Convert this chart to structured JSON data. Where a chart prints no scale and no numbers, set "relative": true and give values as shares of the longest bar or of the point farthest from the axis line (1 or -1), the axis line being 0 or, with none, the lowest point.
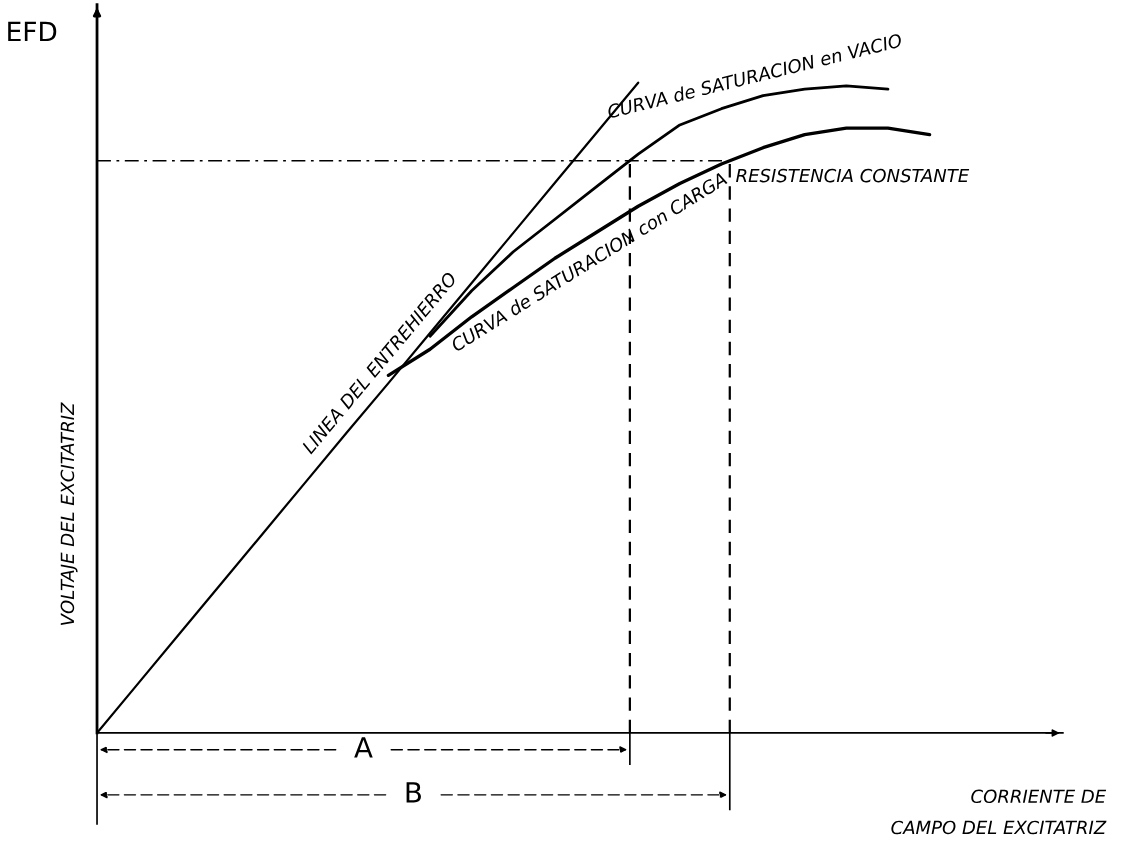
{
  "chart_data": {
    "type": "line",
    "relative": true,
    "legend": false,
    "marker": "none",
    "ylabel": "VOLTAJE DEL EXCITATRIZ",
    "xlabel": "CORRIENTE DE\nCAMPO DEL EXCITATRIZ",
    "annotations": [
      "EFD",
      "RESISTENCIA CONSTANTE",
      "A",
      "B"
    ],
    "categories": [
      null,
      null,
      null,
      null,
      null,
      null,
      null,
      null,
      null,
      null,
      null,
      null,
      null,
      null,
      null,
      null,
      null,
      null,
      null,
      null,
      null
    ],
    "series": [
      {
        "name": "LINEA DEL ENTREHIERRO",
        "color": "#000000",
        "values": [
          0,
          0.077,
          0.154,
          0.231,
          0.308,
          0.385,
          0.462,
          0.538,
          0.615,
          0.692,
          0.769,
          0.846,
          0.923,
          1.0,
          null,
          null,
          null,
          null,
          null,
          null,
          null
        ]
      },
      {
        "name": "CURVA de SATURACION en VACIO",
        "color": "#000000",
        "values": [
          null,
          null,
          null,
          null,
          null,
          null,
          null,
          null,
          0.61,
          0.68,
          0.74,
          0.79,
          0.84,
          0.89,
          0.935,
          0.96,
          0.98,
          0.99,
          0.995,
          0.99,
          null
        ]
      },
      {
        "name": "CURVA de SATURACION con CARGA",
        "color": "#000000",
        "values": [
          null,
          null,
          null,
          null,
          null,
          null,
          null,
          0.55,
          0.59,
          0.64,
          0.685,
          0.73,
          0.77,
          0.81,
          0.845,
          0.875,
          0.9,
          0.92,
          0.93,
          0.93,
          0.92
        ]
      }
    ],
    "ref_lines": [
      {
        "axis": "y",
        "value": 0.88,
        "label": null,
        "line_style": "dashdot"
      }
    ]
  }
}
